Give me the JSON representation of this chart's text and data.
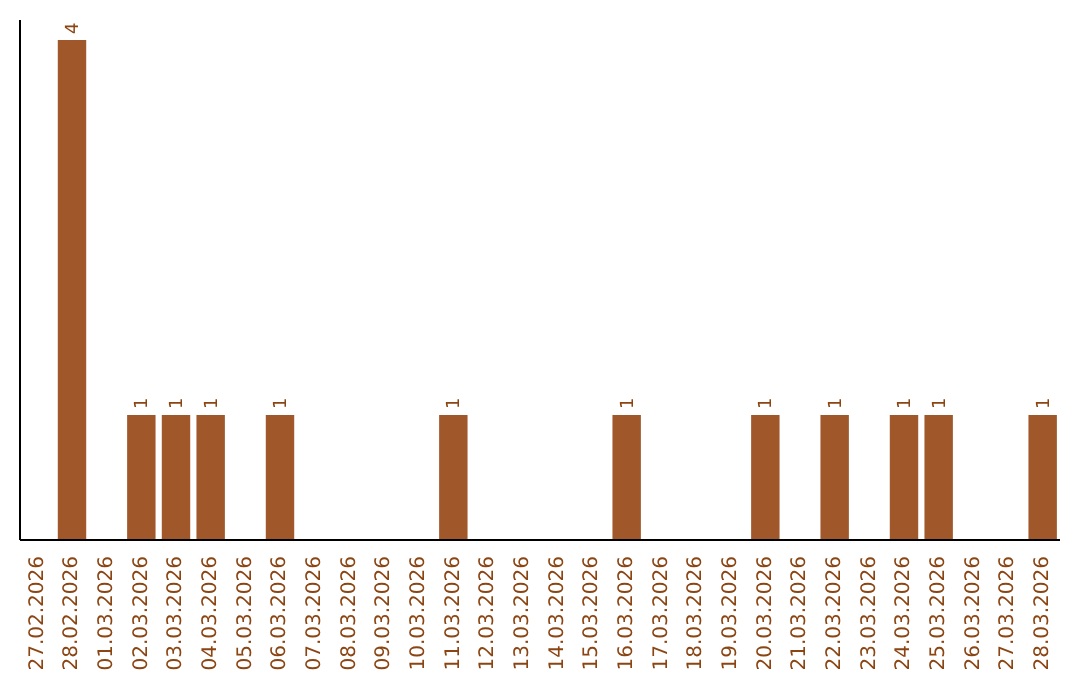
{
  "chart_data": {
    "type": "bar",
    "categories": [
      "27.02.2026",
      "28.02.2026",
      "01.03.2026",
      "02.03.2026",
      "03.03.2026",
      "04.03.2026",
      "05.03.2026",
      "06.03.2026",
      "07.03.2026",
      "08.03.2026",
      "09.03.2026",
      "10.03.2026",
      "11.03.2026",
      "12.03.2026",
      "13.03.2026",
      "14.03.2026",
      "15.03.2026",
      "16.03.2026",
      "17.03.2026",
      "18.03.2026",
      "19.03.2026",
      "20.03.2026",
      "21.03.2026",
      "22.03.2026",
      "23.03.2026",
      "24.03.2026",
      "25.03.2026",
      "26.03.2026",
      "27.03.2026",
      "28.03.2026"
    ],
    "values": [
      0,
      4,
      0,
      1,
      1,
      1,
      0,
      1,
      0,
      0,
      0,
      0,
      1,
      0,
      0,
      0,
      0,
      1,
      0,
      0,
      0,
      1,
      0,
      1,
      0,
      1,
      1,
      0,
      0,
      1
    ],
    "value_labels": [
      null,
      "4",
      null,
      "1",
      "1",
      "1",
      null,
      "1",
      null,
      null,
      null,
      null,
      "1",
      null,
      null,
      null,
      null,
      "1",
      null,
      null,
      null,
      "1",
      null,
      "1",
      null,
      "1",
      "1",
      null,
      null,
      "1"
    ],
    "color": "#a0582a",
    "tick_labels": "x"
  }
}
